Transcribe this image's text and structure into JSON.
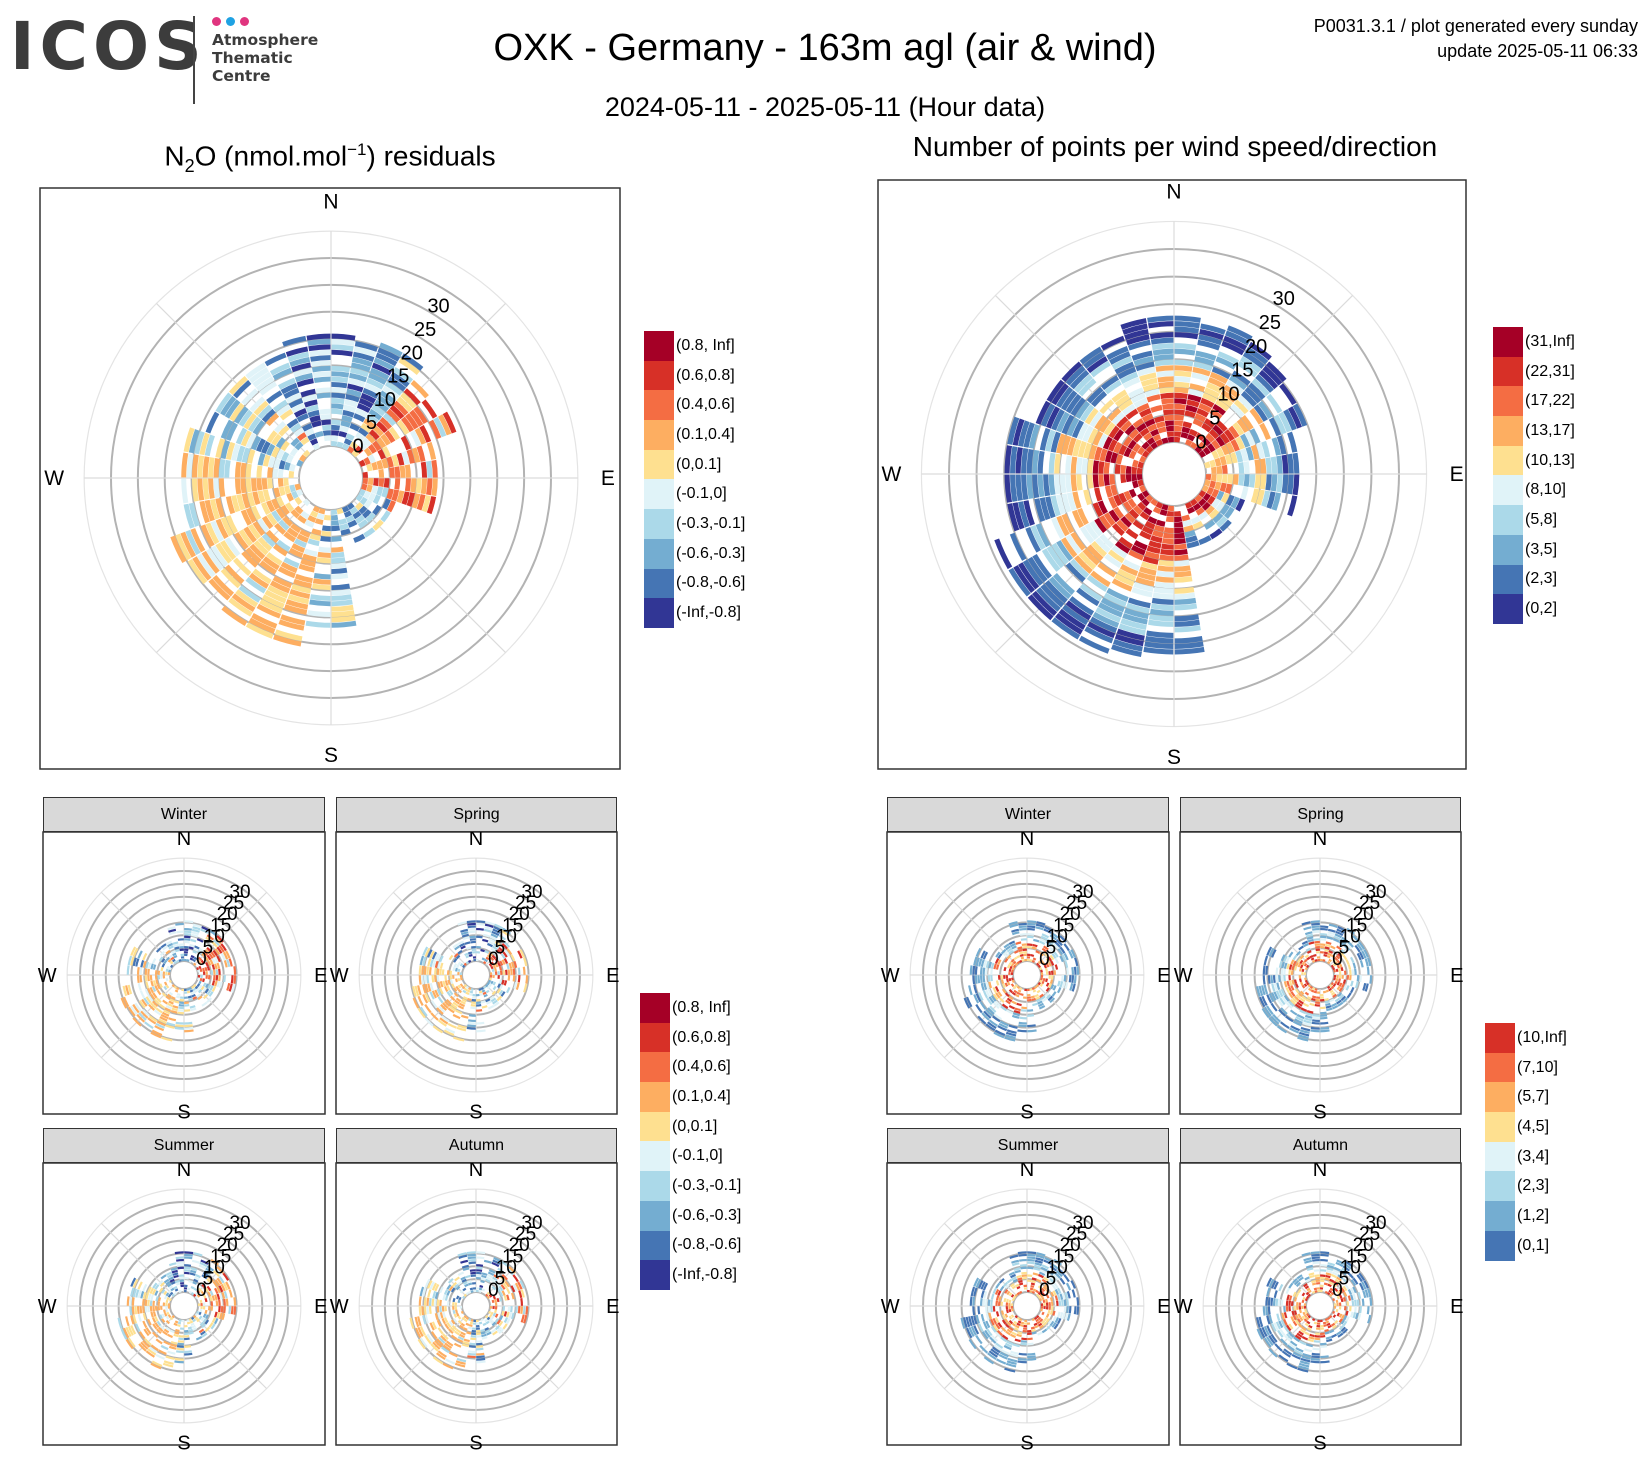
{
  "header": {
    "logo_text": "ICOS",
    "logo_subtitle": [
      "Atmosphere",
      "Thematic",
      "Centre"
    ],
    "title": "OXK - Germany - 163m agl (air & wind)",
    "subtitle": "2024-05-11 - 2025-05-11 (Hour data)",
    "meta_line1": "P0031.3.1 / plot generated every sunday",
    "meta_line2": "update  2025-05-11 06:33",
    "dot_colors": [
      "#e0357f",
      "#1fa2e3",
      "#e0357f"
    ]
  },
  "compass": [
    "N",
    "E",
    "S",
    "W"
  ],
  "chart_data": [
    {
      "id": "residuals",
      "type": "polar-heatmap",
      "title_prefix": "N",
      "title_sub": "2",
      "title_mid": "O (nmol.mol",
      "title_sup": "−1",
      "title_suffix": ") residuals",
      "radial_ticks": [
        0,
        5,
        10,
        15,
        20,
        25,
        30
      ],
      "legend": [
        {
          "label": "(0.8, Inf]",
          "color": "#a50026"
        },
        {
          "label": "(0.6,0.8]",
          "color": "#d73027"
        },
        {
          "label": "(0.4,0.6]",
          "color": "#f46d43"
        },
        {
          "label": "(0.1,0.4]",
          "color": "#fdae61"
        },
        {
          "label": "(0,0.1]",
          "color": "#fee090"
        },
        {
          "label": "(-0.1,0]",
          "color": "#e0f3f8"
        },
        {
          "label": "(-0.3,-0.1]",
          "color": "#abd9e9"
        },
        {
          "label": "(-0.6,-0.3]",
          "color": "#74add1"
        },
        {
          "label": "(-0.8,-0.6]",
          "color": "#4575b4"
        },
        {
          "label": "(-Inf,-0.8]",
          "color": "#313695"
        }
      ],
      "facets": [
        "Winter",
        "Spring",
        "Summer",
        "Autumn"
      ]
    },
    {
      "id": "counts",
      "type": "polar-heatmap",
      "title": "Number of points per wind speed/direction",
      "radial_ticks": [
        0,
        5,
        10,
        15,
        20,
        25,
        30
      ],
      "legend": [
        {
          "label": "(31,Inf]",
          "color": "#a50026"
        },
        {
          "label": "(22,31]",
          "color": "#d73027"
        },
        {
          "label": "(17,22]",
          "color": "#f46d43"
        },
        {
          "label": "(13,17]",
          "color": "#fdae61"
        },
        {
          "label": "(10,13]",
          "color": "#fee090"
        },
        {
          "label": "(8,10]",
          "color": "#e0f3f8"
        },
        {
          "label": "(5,8]",
          "color": "#abd9e9"
        },
        {
          "label": "(3,5]",
          "color": "#74add1"
        },
        {
          "label": "(2,3]",
          "color": "#4575b4"
        },
        {
          "label": "(0,2]",
          "color": "#313695"
        }
      ],
      "facet_legend": [
        {
          "label": "(10,Inf]",
          "color": "#d73027"
        },
        {
          "label": "(7,10]",
          "color": "#f46d43"
        },
        {
          "label": "(5,7]",
          "color": "#fdae61"
        },
        {
          "label": "(4,5]",
          "color": "#fee090"
        },
        {
          "label": "(3,4]",
          "color": "#e0f3f8"
        },
        {
          "label": "(2,3]",
          "color": "#abd9e9"
        },
        {
          "label": "(1,2]",
          "color": "#74add1"
        },
        {
          "label": "(0,1]",
          "color": "#4575b4"
        }
      ],
      "facets": [
        "Winter",
        "Spring",
        "Summer",
        "Autumn"
      ]
    }
  ]
}
